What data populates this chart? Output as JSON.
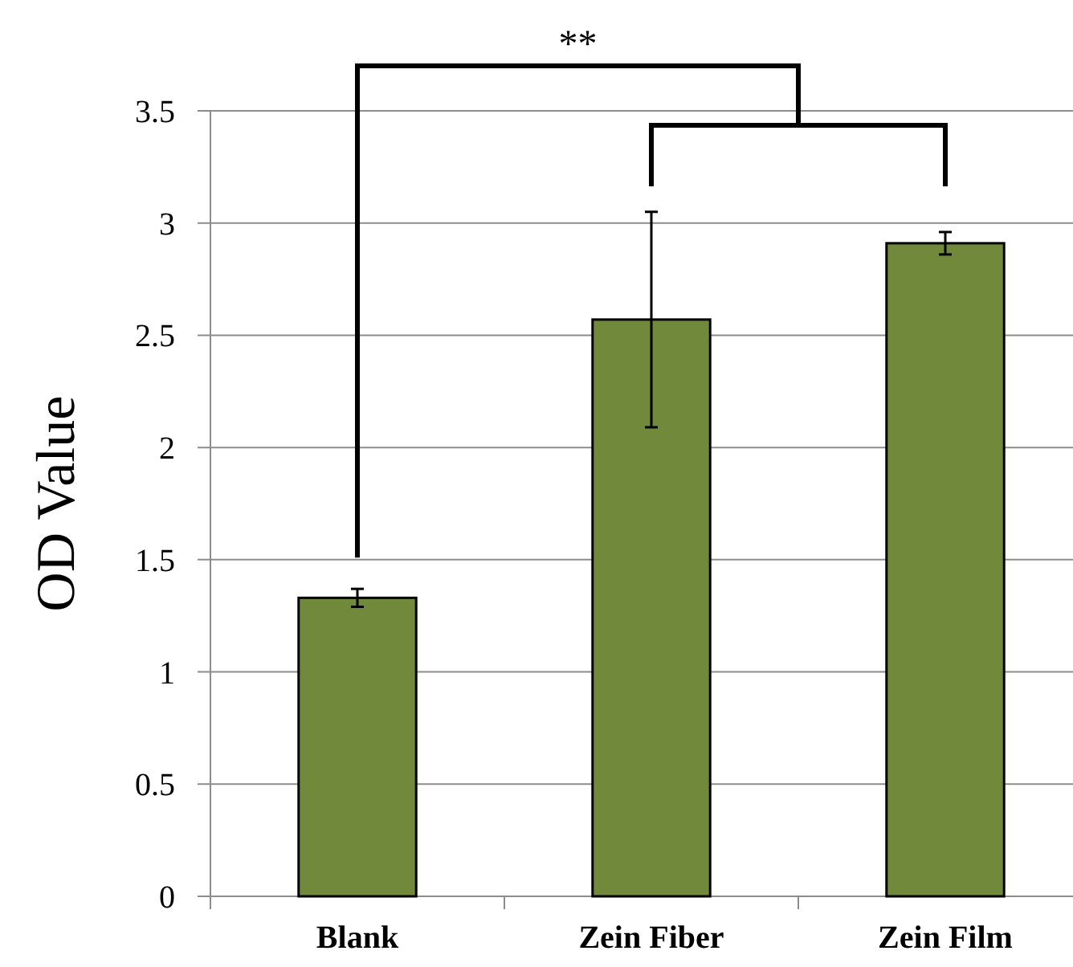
{
  "chart_data": {
    "type": "bar",
    "ylabel": "OD Value",
    "categories": [
      "Blank",
      "Zein Fiber",
      "Zein Film"
    ],
    "values": [
      1.33,
      2.57,
      2.91
    ],
    "errors": [
      0.04,
      0.48,
      0.05
    ],
    "color": "#71893a",
    "ylim": [
      0,
      3.5
    ],
    "yticks": [
      0,
      0.5,
      1,
      1.5,
      2,
      2.5,
      3,
      3.5
    ],
    "grid": "y",
    "annotations": [
      "**"
    ]
  }
}
